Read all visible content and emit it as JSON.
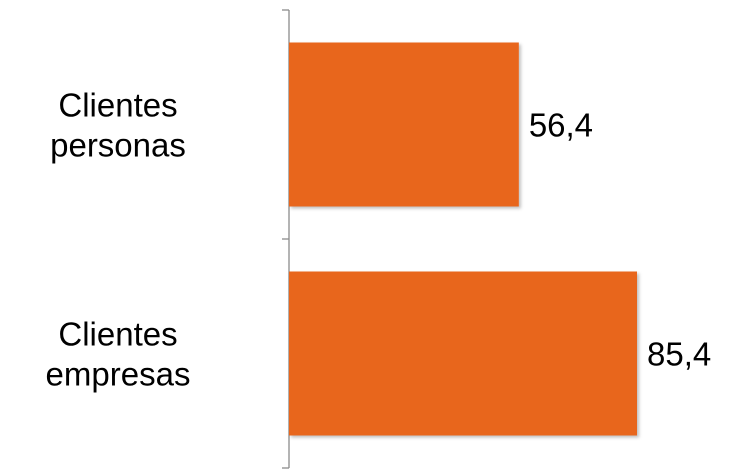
{
  "chart_data": {
    "type": "bar",
    "orientation": "horizontal",
    "categories": [
      [
        "Clientes",
        "personas"
      ],
      [
        "Clientes",
        "empresas"
      ]
    ],
    "values": [
      56.4,
      85.4
    ],
    "value_labels": [
      "56,4",
      "85,4"
    ],
    "bar_color": "#e8661e",
    "xlim": [
      0,
      100
    ],
    "grid": false,
    "legend": "none"
  }
}
